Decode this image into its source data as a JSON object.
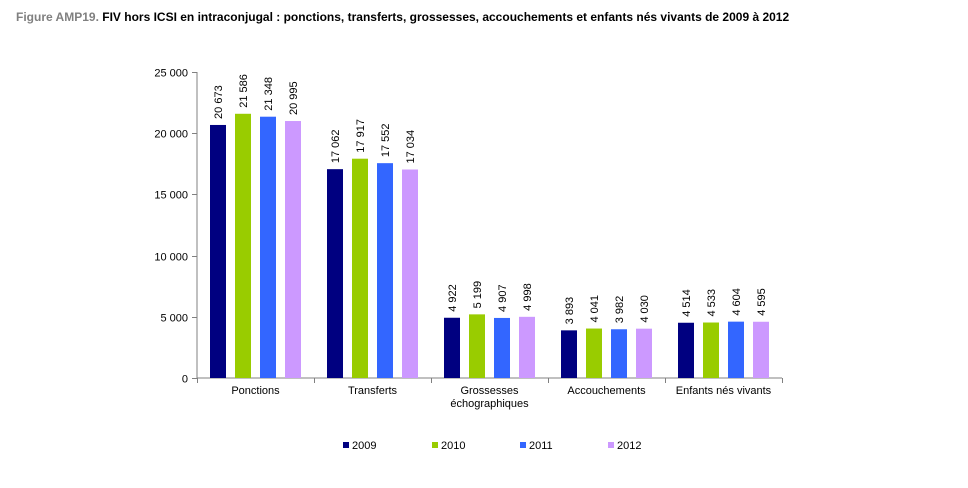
{
  "title": {
    "prefix": "Figure AMP19.",
    "main": "FIV hors ICSI en intraconjugal : ponctions, transferts, grossesses, accouchements et enfants nés vivants de 2009 à 2012"
  },
  "chart_data": {
    "type": "bar",
    "categories": [
      [
        "Ponctions"
      ],
      [
        "Transferts"
      ],
      [
        "Grossesses",
        "échographiques"
      ],
      [
        "Accouchements"
      ],
      [
        "Enfants nés vivants"
      ]
    ],
    "series": [
      {
        "name": "2009",
        "color": "#000080",
        "values": [
          20673,
          17062,
          4922,
          3893,
          4514
        ],
        "labels": [
          "20 673",
          "17 062",
          "4 922",
          "3 893",
          "4 514"
        ]
      },
      {
        "name": "2010",
        "color": "#99CC00",
        "values": [
          21586,
          17917,
          5199,
          4041,
          4533
        ],
        "labels": [
          "21 586",
          "17 917",
          "5 199",
          "4 041",
          "4 533"
        ]
      },
      {
        "name": "2011",
        "color": "#3366FF",
        "values": [
          21348,
          17552,
          4907,
          3982,
          4604
        ],
        "labels": [
          "21 348",
          "17 552",
          "4 907",
          "3 982",
          "4 604"
        ]
      },
      {
        "name": "2012",
        "color": "#CC99FF",
        "values": [
          20995,
          17034,
          4998,
          4030,
          4595
        ],
        "labels": [
          "20 995",
          "17 034",
          "4 998",
          "4 030",
          "4 595"
        ]
      }
    ],
    "yticks": [
      {
        "value": 0,
        "label": "0"
      },
      {
        "value": 5000,
        "label": "5 000"
      },
      {
        "value": 10000,
        "label": "10 000"
      },
      {
        "value": 15000,
        "label": "15 000"
      },
      {
        "value": 20000,
        "label": "20 000"
      },
      {
        "value": 25000,
        "label": "25 000"
      }
    ],
    "ylim": [
      0,
      25000
    ],
    "grid": false,
    "legend": "bottom"
  }
}
